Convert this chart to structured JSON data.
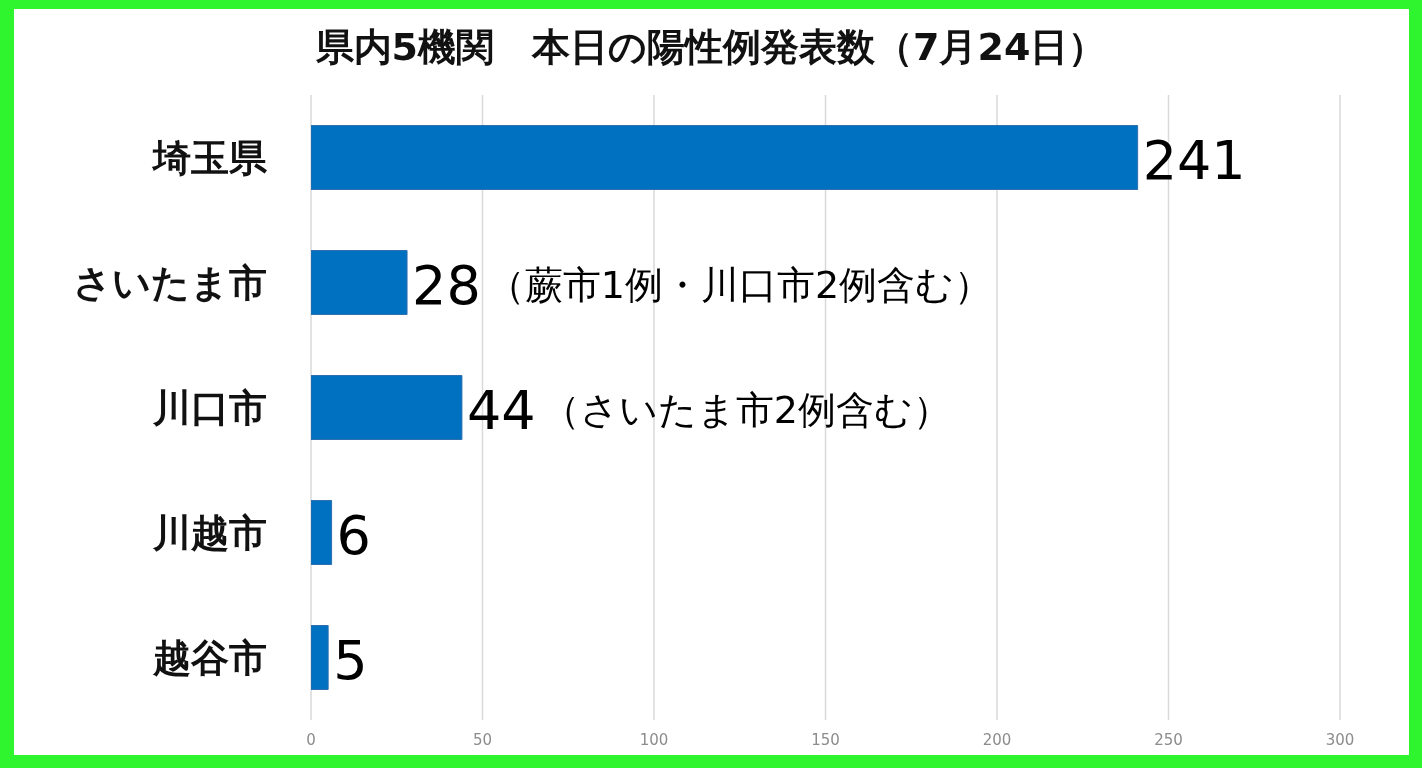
{
  "chart_data": {
    "type": "bar",
    "orientation": "horizontal",
    "title": "県内5機関　本日の陽性例発表数（7月24日）",
    "categories": [
      "埼玉県",
      "さいたま市",
      "川口市",
      "川越市",
      "越谷市"
    ],
    "values": [
      241,
      28,
      44,
      6,
      5
    ],
    "color": "#0070c0",
    "value_labels": [
      "241",
      "28（蕨市1例・川口市2例含む）",
      "44（さいたま市2例含む）",
      "6",
      "5"
    ],
    "xlim": [
      0,
      300
    ],
    "xticks": [
      0,
      50,
      100,
      150,
      200,
      250,
      300
    ],
    "grid": "x"
  }
}
